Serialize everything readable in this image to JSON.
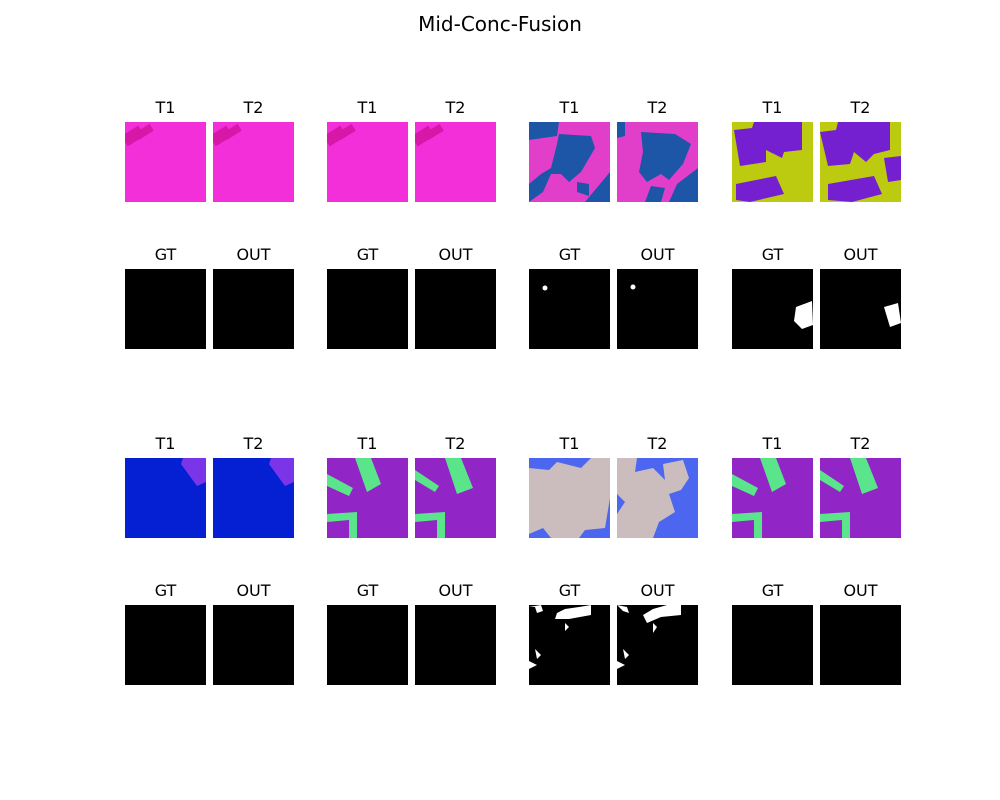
{
  "title": "Mid-Conc-Fusion",
  "groups": [
    {
      "t1": "T1",
      "t2": "T2",
      "gt": "GT",
      "out": "OUT",
      "gt_change": false,
      "out_change": false,
      "colors": {
        "background": "#f22fd9",
        "object": "#d617a8"
      }
    },
    {
      "t1": "T1",
      "t2": "T2",
      "gt": "GT",
      "out": "OUT",
      "gt_change": false,
      "out_change": false,
      "colors": {
        "background": "#f22fd9",
        "object": "#d617a8"
      }
    },
    {
      "t1": "T1",
      "t2": "T2",
      "gt": "GT",
      "out": "OUT",
      "gt_change": true,
      "out_change": true,
      "colors": {
        "background": "#e13fc9",
        "object": "#1d56a6"
      }
    },
    {
      "t1": "T1",
      "t2": "T2",
      "gt": "GT",
      "out": "OUT",
      "gt_change": true,
      "out_change": true,
      "colors": {
        "background": "#bccb0f",
        "object": "#7520d0"
      }
    },
    {
      "t1": "T1",
      "t2": "T2",
      "gt": "GT",
      "out": "OUT",
      "gt_change": false,
      "out_change": false,
      "colors": {
        "background": "#0520d2",
        "object": "#7a35e8"
      }
    },
    {
      "t1": "T1",
      "t2": "T2",
      "gt": "GT",
      "out": "OUT",
      "gt_change": false,
      "out_change": false,
      "colors": {
        "background": "#9125c6",
        "object": "#5ae58b"
      }
    },
    {
      "t1": "T1",
      "t2": "T2",
      "gt": "GT",
      "out": "OUT",
      "gt_change": true,
      "out_change": true,
      "colors": {
        "background": "#4c66f0",
        "object": "#cbbdbe"
      }
    },
    {
      "t1": "T1",
      "t2": "T2",
      "gt": "GT",
      "out": "OUT",
      "gt_change": false,
      "out_change": false,
      "colors": {
        "background": "#9125c6",
        "object": "#5ae58b"
      }
    }
  ]
}
